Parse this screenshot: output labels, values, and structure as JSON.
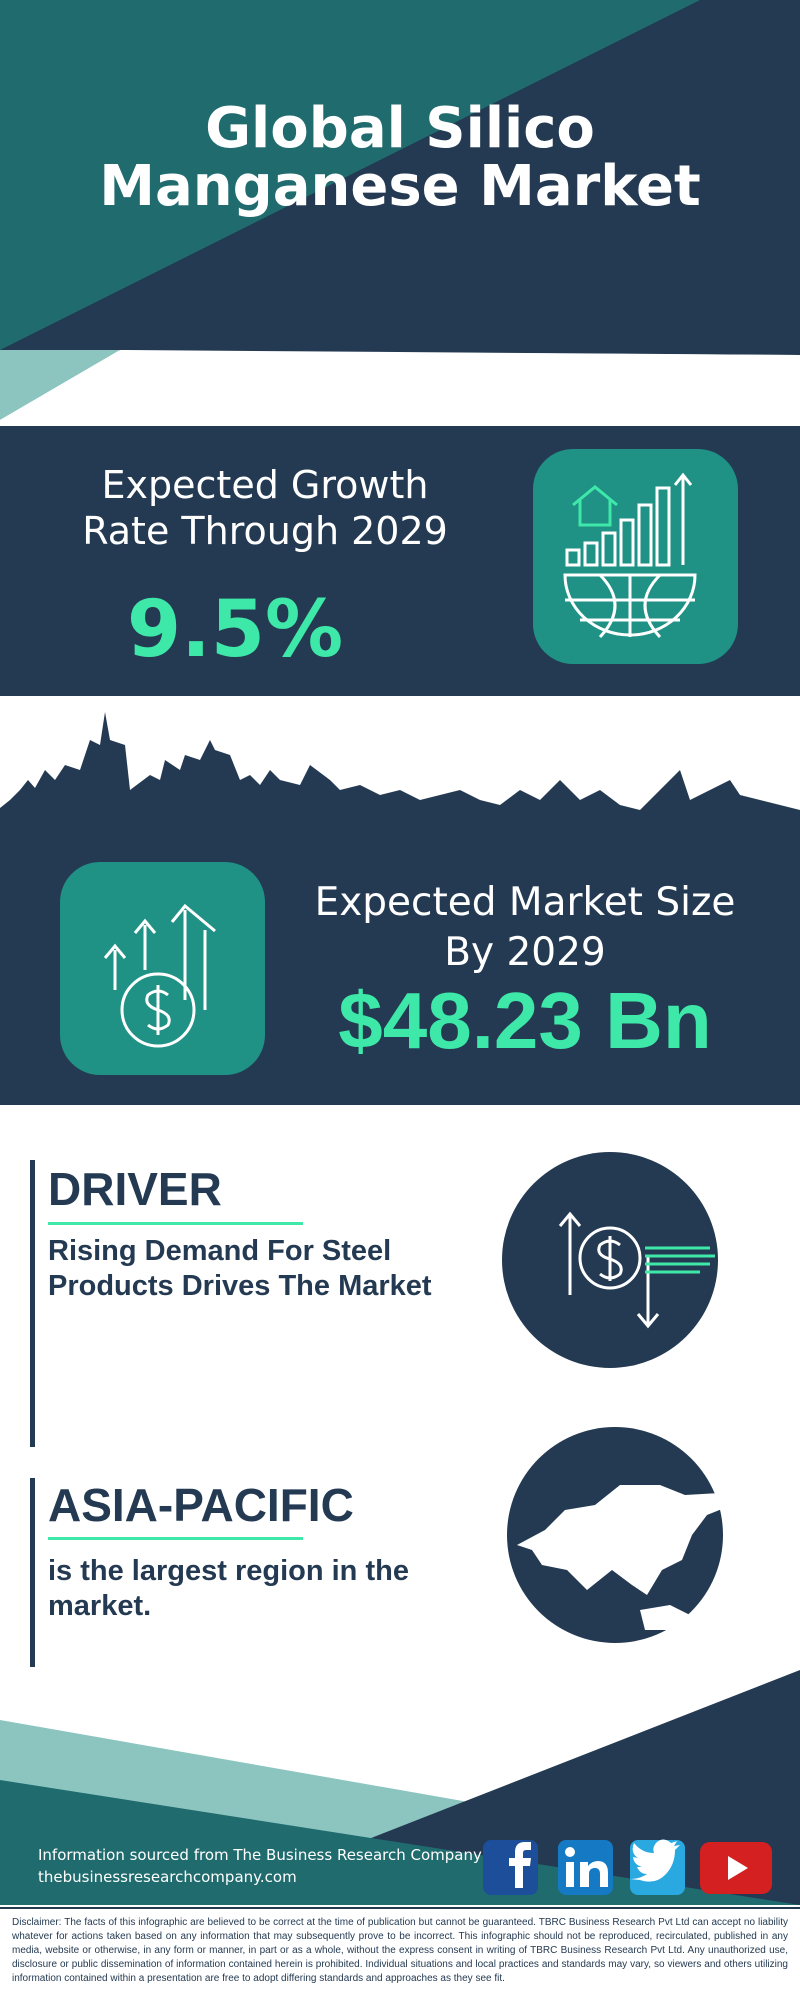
{
  "header": {
    "title": "Global Silico Manganese Market"
  },
  "growth": {
    "label": "Expected Growth Rate Through 2029",
    "value": "9.5%"
  },
  "market": {
    "label": "Expected Market Size By 2029",
    "value": "$48.23 Bn"
  },
  "driver": {
    "title": "DRIVER",
    "text": "Rising Demand For Steel Products Drives The Market"
  },
  "region": {
    "title": "ASIA-PACIFIC",
    "text": "is the largest region in the market."
  },
  "footer": {
    "source": "Information sourced from The Business Research Company",
    "url": "thebusinessresearchcompany.com",
    "disclaimer": "Disclaimer: The facts of this infographic are believed to be correct at the time of publication but cannot be guaranteed. TBRC Business Research Pvt Ltd can accept no liability whatever for actions taken based on any information that may subsequently prove to be incorrect. This infographic should not be reproduced, recirculated, published in any media, website or otherwise, in any form or manner, in part or as a whole, without the express consent in writing of TBRC Business Research Pvt Ltd. Any unauthorized use, disclosure or public dissemination of information contained herein is prohibited. Individual situations and local practices and standards may vary, so viewers and others utilizing information contained within a presentation are free to adopt differing standards and approaches as they see fit."
  }
}
